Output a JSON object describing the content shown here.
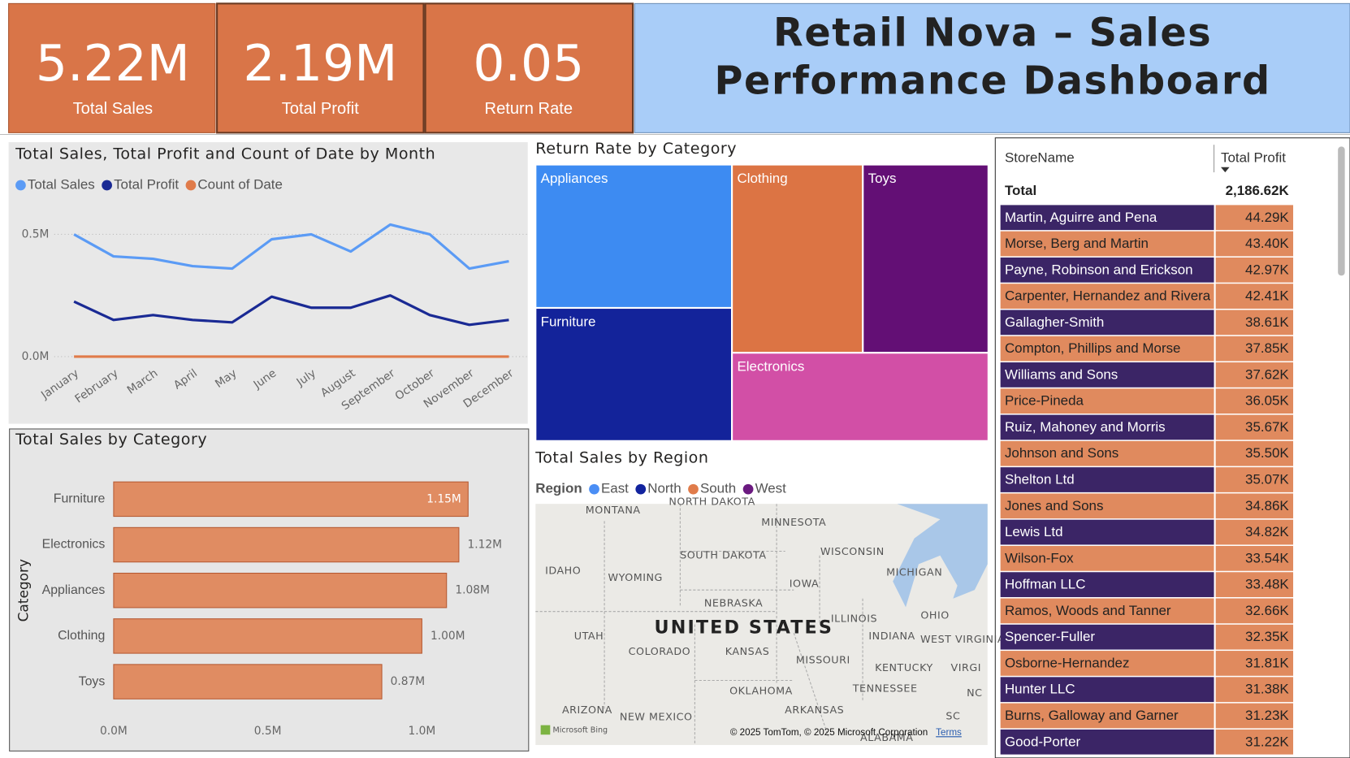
{
  "kpis": [
    {
      "value": "5.22M",
      "label": "Total Sales"
    },
    {
      "value": "2.19M",
      "label": "Total Profit"
    },
    {
      "value": "0.05",
      "label": "Return Rate"
    }
  ],
  "header": {
    "title": "Retail Nova – Sales Performance Dashboard"
  },
  "chart_data": [
    {
      "type": "line",
      "title": "Total Sales, Total Profit and Count of Date by Month",
      "categories": [
        "January",
        "February",
        "March",
        "April",
        "May",
        "June",
        "July",
        "August",
        "September",
        "October",
        "November",
        "December"
      ],
      "series": [
        {
          "name": "Total Sales",
          "color": "#5b9bf5",
          "values": [
            500000,
            410000,
            400000,
            370000,
            360000,
            480000,
            500000,
            430000,
            540000,
            500000,
            360000,
            390000
          ]
        },
        {
          "name": "Total Profit",
          "color": "#1a2a94",
          "values": [
            225000,
            150000,
            170000,
            150000,
            140000,
            245000,
            200000,
            200000,
            250000,
            170000,
            130000,
            150000
          ]
        },
        {
          "name": "Count of Date",
          "color": "#e07b4a",
          "values": [
            0,
            0,
            0,
            0,
            0,
            0,
            0,
            0,
            0,
            0,
            0,
            0
          ]
        }
      ],
      "ylim": [
        0,
        560000
      ],
      "yticks": [
        {
          "value": 0,
          "label": "0.0M"
        },
        {
          "value": 500000,
          "label": "0.5M"
        }
      ],
      "grid": true
    },
    {
      "type": "hbar",
      "title": "Total Sales by Category",
      "y_label": "Category",
      "categories": [
        "Furniture",
        "Electronics",
        "Appliances",
        "Clothing",
        "Toys"
      ],
      "values": [
        1150000,
        1120000,
        1080000,
        1000000,
        870000
      ],
      "value_labels": [
        "1.15M",
        "1.12M",
        "1.08M",
        "1.00M",
        "0.87M"
      ],
      "color": "#e08c62",
      "xlim": [
        0,
        1200000
      ],
      "xticks": [
        {
          "value": 0,
          "label": "0.0M"
        },
        {
          "value": 500000,
          "label": "0.5M"
        },
        {
          "value": 1000000,
          "label": "1.0M"
        }
      ]
    },
    {
      "type": "treemap",
      "title": "Return Rate by Category",
      "categories": [
        "Appliances",
        "Clothing",
        "Toys",
        "Furniture",
        "Electronics"
      ],
      "values": [
        0.056,
        0.049,
        0.047,
        0.052,
        0.045
      ],
      "colors": [
        "#3d8bf2",
        "#dc7444",
        "#630f75",
        "#13239a",
        "#d24fa6"
      ]
    },
    {
      "type": "map",
      "title": "Total Sales by Region",
      "legend_title": "Region",
      "series": [
        {
          "name": "East",
          "color": "#4a8ef5"
        },
        {
          "name": "North",
          "color": "#12239e"
        },
        {
          "name": "South",
          "color": "#e07b4a"
        },
        {
          "name": "West",
          "color": "#6b1a80"
        }
      ],
      "labels": [
        "MONTANA",
        "NORTH DAKOTA",
        "MINNESOTA",
        "SOUTH DAKOTA",
        "WISCONSIN",
        "IDAHO",
        "WYOMING",
        "MICHIGAN",
        "IOWA",
        "NEBRASKA",
        "UNITED STATES",
        "ILLINOIS",
        "OHIO",
        "UTAH",
        "INDIANA",
        "WEST VIRGINIA",
        "COLORADO",
        "KANSAS",
        "MISSOURI",
        "KENTUCKY",
        "VIRGI",
        "OKLAHOMA",
        "TENNESSEE",
        "ARIZONA",
        "NEW MEXICO",
        "ARKANSAS",
        "SC",
        "ALABAMA",
        "NC"
      ],
      "provider": "Microsoft Bing",
      "attribution": "© 2025 TomTom, © 2025 Microsoft Corporation",
      "terms": "Terms"
    }
  ],
  "table": {
    "columns": [
      "StoreName",
      "Total Profit"
    ],
    "total": [
      "Total",
      "2,186.62K"
    ],
    "rows": [
      [
        "Martin, Aguirre and Pena",
        "44.29K"
      ],
      [
        "Morse, Berg and Martin",
        "43.40K"
      ],
      [
        "Payne, Robinson and Erickson",
        "42.97K"
      ],
      [
        "Carpenter, Hernandez and Rivera",
        "42.41K"
      ],
      [
        "Gallagher-Smith",
        "38.61K"
      ],
      [
        "Compton, Phillips and Morse",
        "37.85K"
      ],
      [
        "Williams and Sons",
        "37.62K"
      ],
      [
        "Price-Pineda",
        "36.05K"
      ],
      [
        "Ruiz, Mahoney and Morris",
        "35.67K"
      ],
      [
        "Johnson and Sons",
        "35.50K"
      ],
      [
        "Shelton Ltd",
        "35.07K"
      ],
      [
        "Jones and Sons",
        "34.86K"
      ],
      [
        "Lewis Ltd",
        "34.82K"
      ],
      [
        "Wilson-Fox",
        "33.54K"
      ],
      [
        "Hoffman LLC",
        "33.48K"
      ],
      [
        "Ramos, Woods and Tanner",
        "32.66K"
      ],
      [
        "Spencer-Fuller",
        "32.35K"
      ],
      [
        "Osborne-Hernandez",
        "31.81K"
      ],
      [
        "Hunter LLC",
        "31.38K"
      ],
      [
        "Burns, Galloway and Garner",
        "31.23K"
      ],
      [
        "Good-Porter",
        "31.22K"
      ]
    ]
  }
}
